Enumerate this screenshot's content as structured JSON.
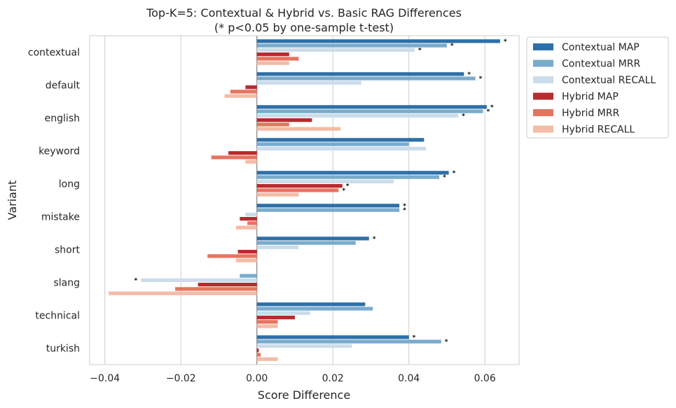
{
  "chart_data": {
    "type": "bar",
    "orientation": "horizontal",
    "title": "Top-K=5: Contextual & Hybrid vs. Basic RAG Differences",
    "subtitle": "(* p<0.05 by one-sample t-test)",
    "xlabel": "Score Difference",
    "ylabel": "Variant",
    "xlim": [
      -0.044,
      0.069
    ],
    "xticks": [
      -0.04,
      -0.02,
      0.0,
      0.02,
      0.04,
      0.06
    ],
    "xtick_labels": [
      "−0.04",
      "−0.02",
      "0.00",
      "0.02",
      "0.04",
      "0.06"
    ],
    "grid": "vertical",
    "legend_position": "outside-top-right",
    "significance_marker": "*",
    "categories": [
      "contextual",
      "default",
      "english",
      "keyword",
      "long",
      "mistake",
      "short",
      "slang",
      "technical",
      "turkish"
    ],
    "series": [
      {
        "name": "Contextual MAP",
        "color": "#2e6fa8",
        "values": [
          0.064,
          0.0545,
          0.0605,
          0.044,
          0.0505,
          0.0375,
          0.0295,
          0.0,
          0.0285,
          0.04
        ],
        "significant": [
          true,
          true,
          true,
          false,
          true,
          true,
          true,
          false,
          false,
          true
        ]
      },
      {
        "name": "Contextual MRR",
        "color": "#79abcc",
        "values": [
          0.05,
          0.0575,
          0.0595,
          0.04,
          0.048,
          0.0375,
          0.026,
          -0.0045,
          0.0305,
          0.0485
        ],
        "significant": [
          true,
          true,
          true,
          false,
          true,
          true,
          false,
          false,
          false,
          true
        ]
      },
      {
        "name": "Contextual RECALL",
        "color": "#ccdceb",
        "values": [
          0.0415,
          0.0275,
          0.053,
          0.0445,
          0.036,
          -0.003,
          0.011,
          -0.0305,
          0.014,
          0.025
        ],
        "significant": [
          true,
          false,
          true,
          false,
          false,
          false,
          false,
          true,
          false,
          false
        ]
      },
      {
        "name": "Hybrid MAP",
        "color": "#b82b2e",
        "values": [
          0.0085,
          -0.003,
          0.0145,
          -0.0075,
          0.0225,
          -0.0045,
          -0.005,
          -0.0155,
          0.01,
          0.0005
        ],
        "significant": [
          false,
          false,
          false,
          false,
          true,
          false,
          false,
          false,
          false,
          false
        ]
      },
      {
        "name": "Hybrid MRR",
        "color": "#e8735f",
        "values": [
          0.011,
          -0.007,
          0.0085,
          -0.012,
          0.0215,
          -0.0025,
          -0.013,
          -0.0215,
          0.0055,
          0.001
        ],
        "significant": [
          false,
          false,
          false,
          false,
          true,
          false,
          false,
          false,
          false,
          false
        ]
      },
      {
        "name": "Hybrid RECALL",
        "color": "#f4bba6",
        "values": [
          0.0085,
          -0.0085,
          0.022,
          -0.003,
          0.011,
          -0.0055,
          -0.0055,
          -0.039,
          0.0055,
          0.0055
        ],
        "significant": [
          false,
          false,
          false,
          false,
          false,
          false,
          false,
          false,
          false,
          false
        ]
      }
    ]
  }
}
